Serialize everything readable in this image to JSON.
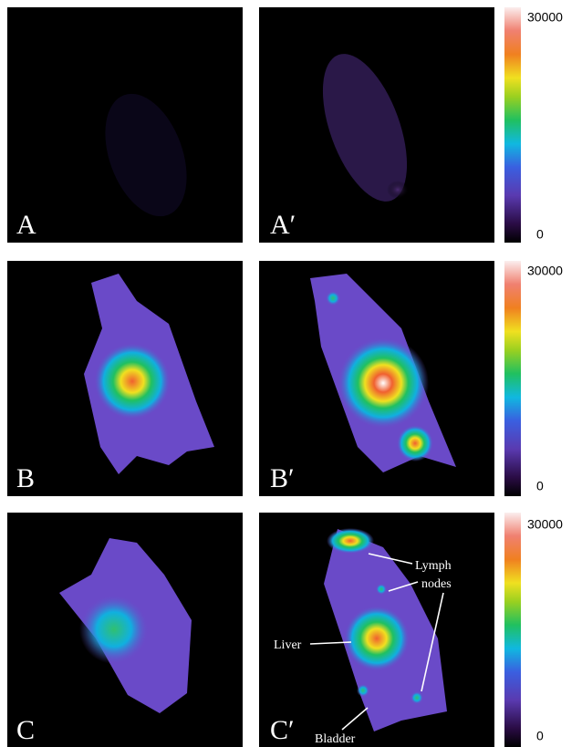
{
  "panels": [
    {
      "label": "A"
    },
    {
      "label": "A′"
    },
    {
      "label": "B"
    },
    {
      "label": "B′"
    },
    {
      "label": "C"
    },
    {
      "label": "C′"
    }
  ],
  "colorbars": [
    {
      "max_label": "30000",
      "min_label": "0"
    },
    {
      "max_label": "30000",
      "min_label": "0"
    },
    {
      "max_label": "30000",
      "min_label": "0"
    }
  ],
  "annotations": {
    "lymph_nodes": [
      "Lymph",
      "nodes"
    ],
    "liver": "Liver",
    "bladder": "Bladder"
  }
}
